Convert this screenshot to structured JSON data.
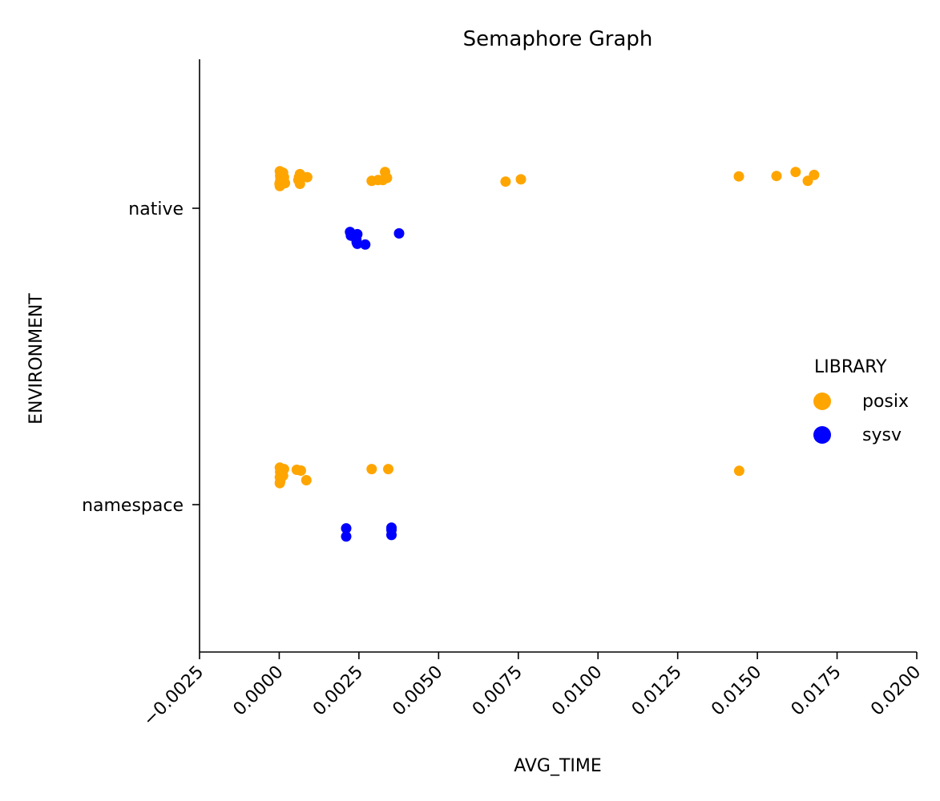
{
  "chart_data": {
    "type": "scatter",
    "title": "Semaphore Graph",
    "xlabel": "AVG_TIME",
    "ylabel": "ENVIRONMENT",
    "xlim": [
      -0.0025,
      0.02
    ],
    "x_ticks": [
      "−0.0025",
      "0.0000",
      "0.0025",
      "0.0050",
      "0.0075",
      "0.0100",
      "0.0125",
      "0.0150",
      "0.0175",
      "0.0200"
    ],
    "categories": [
      "native",
      "namespace"
    ],
    "grid": false,
    "legend": {
      "title": "LIBRARY",
      "position": "center-right"
    },
    "series": [
      {
        "name": "posix",
        "color": "#FFA500",
        "points": [
          {
            "category": "native",
            "x": 2e-05,
            "jitter": -0.25
          },
          {
            "category": "native",
            "x": 3e-05,
            "jitter": -0.22
          },
          {
            "category": "native",
            "x": 4e-05,
            "jitter": -0.2
          },
          {
            "category": "native",
            "x": 3e-05,
            "jitter": -0.18
          },
          {
            "category": "native",
            "x": 5e-05,
            "jitter": -0.16
          },
          {
            "category": "native",
            "x": 2e-05,
            "jitter": -0.15
          },
          {
            "category": "native",
            "x": 4e-05,
            "jitter": -0.23
          },
          {
            "category": "native",
            "x": 0.00012,
            "jitter": -0.24
          },
          {
            "category": "native",
            "x": 0.00015,
            "jitter": -0.21
          },
          {
            "category": "native",
            "x": 0.00018,
            "jitter": -0.17
          },
          {
            "category": "native",
            "x": 0.0001,
            "jitter": -0.165
          },
          {
            "category": "native",
            "x": 1e-05,
            "jitter": -0.165
          },
          {
            "category": "native",
            "x": 0.00065,
            "jitter": -0.23
          },
          {
            "category": "native",
            "x": 0.00062,
            "jitter": -0.21
          },
          {
            "category": "native",
            "x": 0.00088,
            "jitter": -0.21
          },
          {
            "category": "native",
            "x": 0.0006,
            "jitter": -0.19
          },
          {
            "category": "native",
            "x": 0.00065,
            "jitter": -0.165
          },
          {
            "category": "native",
            "x": 0.00332,
            "jitter": -0.245
          },
          {
            "category": "native",
            "x": 0.00338,
            "jitter": -0.205
          },
          {
            "category": "native",
            "x": 0.0029,
            "jitter": -0.185
          },
          {
            "category": "native",
            "x": 0.0031,
            "jitter": -0.19
          },
          {
            "category": "native",
            "x": 0.00325,
            "jitter": -0.19
          },
          {
            "category": "native",
            "x": 0.0071,
            "jitter": -0.18
          },
          {
            "category": "native",
            "x": 0.00758,
            "jitter": -0.195
          },
          {
            "category": "native",
            "x": 0.01442,
            "jitter": -0.215
          },
          {
            "category": "native",
            "x": 0.0156,
            "jitter": -0.218
          },
          {
            "category": "native",
            "x": 0.0162,
            "jitter": -0.245
          },
          {
            "category": "native",
            "x": 0.01678,
            "jitter": -0.225
          },
          {
            "category": "native",
            "x": 0.01658,
            "jitter": -0.185
          },
          {
            "category": "namespace",
            "x": 2e-05,
            "jitter": -0.25
          },
          {
            "category": "namespace",
            "x": 4e-05,
            "jitter": -0.24
          },
          {
            "category": "namespace",
            "x": 3e-05,
            "jitter": -0.22
          },
          {
            "category": "namespace",
            "x": 5e-05,
            "jitter": -0.2
          },
          {
            "category": "namespace",
            "x": 2e-05,
            "jitter": -0.185
          },
          {
            "category": "namespace",
            "x": 4e-05,
            "jitter": -0.17
          },
          {
            "category": "namespace",
            "x": 3e-05,
            "jitter": -0.155
          },
          {
            "category": "namespace",
            "x": 2e-05,
            "jitter": -0.145
          },
          {
            "category": "namespace",
            "x": 0.00015,
            "jitter": -0.24
          },
          {
            "category": "namespace",
            "x": 0.00012,
            "jitter": -0.195
          },
          {
            "category": "namespace",
            "x": 8e-05,
            "jitter": -0.225
          },
          {
            "category": "namespace",
            "x": 0.00055,
            "jitter": -0.235
          },
          {
            "category": "namespace",
            "x": 0.00068,
            "jitter": -0.23
          },
          {
            "category": "namespace",
            "x": 0.00085,
            "jitter": -0.165
          },
          {
            "category": "namespace",
            "x": 0.0029,
            "jitter": -0.24
          },
          {
            "category": "namespace",
            "x": 0.00342,
            "jitter": -0.24
          },
          {
            "category": "namespace",
            "x": 0.01443,
            "jitter": -0.228
          }
        ]
      },
      {
        "name": "sysv",
        "color": "#0000FF",
        "points": [
          {
            "category": "native",
            "x": 0.00222,
            "jitter": 0.16
          },
          {
            "category": "native",
            "x": 0.00225,
            "jitter": 0.185
          },
          {
            "category": "native",
            "x": 0.00238,
            "jitter": 0.19
          },
          {
            "category": "native",
            "x": 0.00245,
            "jitter": 0.175
          },
          {
            "category": "native",
            "x": 0.00242,
            "jitter": 0.21
          },
          {
            "category": "native",
            "x": 0.00243,
            "jitter": 0.23
          },
          {
            "category": "native",
            "x": 0.00245,
            "jitter": 0.24
          },
          {
            "category": "native",
            "x": 0.0027,
            "jitter": 0.245
          },
          {
            "category": "native",
            "x": 0.00376,
            "jitter": 0.17
          },
          {
            "category": "namespace",
            "x": 0.0021,
            "jitter": 0.16
          },
          {
            "category": "namespace",
            "x": 0.0021,
            "jitter": 0.215
          },
          {
            "category": "namespace",
            "x": 0.00352,
            "jitter": 0.155
          },
          {
            "category": "namespace",
            "x": 0.00352,
            "jitter": 0.17
          },
          {
            "category": "namespace",
            "x": 0.00352,
            "jitter": 0.205
          }
        ]
      }
    ]
  }
}
